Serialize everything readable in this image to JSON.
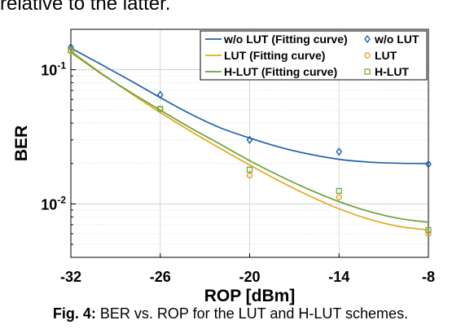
{
  "page": {
    "top_text": "relative to the latter.",
    "caption_label": "Fig. 4:",
    "caption_text": " BER vs. ROP for the LUT and H-LUT schemes."
  },
  "chart_data": {
    "type": "line",
    "title": "",
    "xlabel": "ROP [dBm]",
    "ylabel": "BER",
    "xlim": [
      -32,
      -8
    ],
    "ylim": [
      0.004,
      0.2
    ],
    "yscale": "log",
    "xticks": [
      -32,
      -26,
      -20,
      -14,
      -8
    ],
    "xtick_labels": [
      "-32",
      "-26",
      "-20",
      "-14",
      "-8"
    ],
    "yticks": [
      {
        "value": 0.1,
        "base": "10",
        "exp": "-1"
      },
      {
        "value": 0.01,
        "base": "10",
        "exp": "-2"
      }
    ],
    "grid": true,
    "legend_position": "top-right",
    "series": [
      {
        "name": "w/o LUT (Fitting curve)",
        "kind": "curve",
        "color": "#1f62ad",
        "x": [
          -32,
          -30,
          -28,
          -26,
          -24,
          -22,
          -20,
          -18,
          -16,
          -14,
          -12,
          -10,
          -8
        ],
        "y": [
          0.145,
          0.11,
          0.083,
          0.062,
          0.047,
          0.037,
          0.031,
          0.0265,
          0.0235,
          0.0215,
          0.0205,
          0.0201,
          0.02
        ]
      },
      {
        "name": "LUT (Fitting curve)",
        "kind": "curve",
        "color": "#e3a91c",
        "x": [
          -32,
          -30,
          -28,
          -26,
          -24,
          -22,
          -20,
          -18,
          -16,
          -14,
          -12,
          -10,
          -8
        ],
        "y": [
          0.138,
          0.095,
          0.067,
          0.048,
          0.035,
          0.026,
          0.0195,
          0.0148,
          0.0115,
          0.0092,
          0.0077,
          0.0068,
          0.0064
        ]
      },
      {
        "name": "H-LUT (Fitting curve)",
        "kind": "curve",
        "color": "#6aa23a",
        "x": [
          -32,
          -30,
          -28,
          -26,
          -24,
          -22,
          -20,
          -18,
          -16,
          -14,
          -12,
          -10,
          -8
        ],
        "y": [
          0.135,
          0.094,
          0.068,
          0.05,
          0.037,
          0.028,
          0.021,
          0.0162,
          0.0128,
          0.0104,
          0.0088,
          0.0078,
          0.0073
        ]
      },
      {
        "name": "w/o LUT",
        "kind": "marker",
        "marker": "diamond",
        "color": "#1f62ad",
        "x": [
          -32,
          -26,
          -20,
          -14,
          -8
        ],
        "y": [
          0.147,
          0.065,
          0.03,
          0.0245,
          0.0198
        ]
      },
      {
        "name": "LUT",
        "kind": "marker",
        "marker": "circle",
        "color": "#e3a91c",
        "x": [
          -32,
          -26,
          -20,
          -14,
          -8
        ],
        "y": [
          0.137,
          0.051,
          0.0163,
          0.0112,
          0.006
        ]
      },
      {
        "name": "H-LUT",
        "kind": "marker",
        "marker": "square",
        "color": "#6aa23a",
        "x": [
          -32,
          -26,
          -20,
          -14,
          -8
        ],
        "y": [
          0.14,
          0.051,
          0.018,
          0.0125,
          0.0064
        ]
      }
    ]
  }
}
